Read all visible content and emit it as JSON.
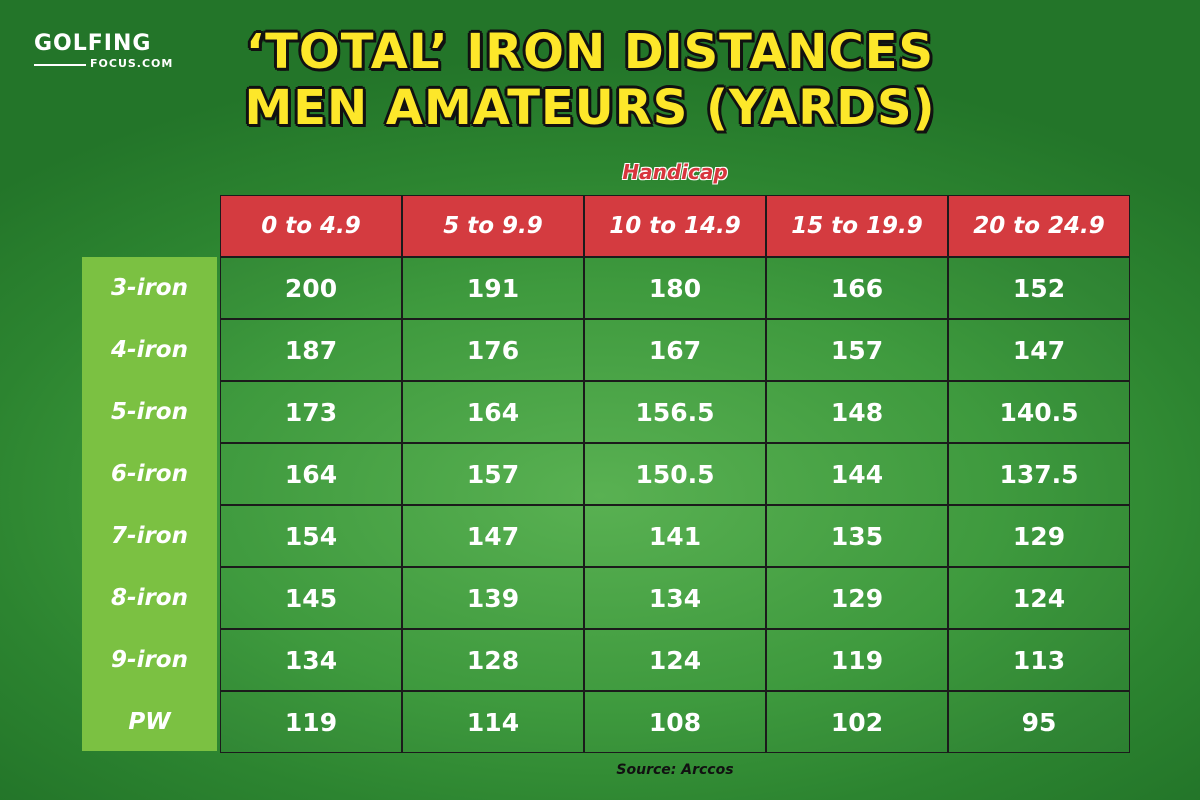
{
  "logo": {
    "top": "GOLFING",
    "bottom": "FOCUS.COM"
  },
  "chart_data": {
    "type": "table",
    "title": [
      "‘TOTAL’ IRON DISTANCES",
      "MEN AMATEURS (YARDS)"
    ],
    "column_group_label": "Handicap",
    "columns": [
      "0 to 4.9",
      "5 to 9.9",
      "10 to 14.9",
      "15 to 19.9",
      "20 to 24.9"
    ],
    "rows": [
      {
        "label": "3-iron",
        "values": [
          "200",
          "191",
          "180",
          "166",
          "152"
        ]
      },
      {
        "label": "4-iron",
        "values": [
          "187",
          "176",
          "167",
          "157",
          "147"
        ]
      },
      {
        "label": "5-iron",
        "values": [
          "173",
          "164",
          "156.5",
          "148",
          "140.5"
        ]
      },
      {
        "label": "6-iron",
        "values": [
          "164",
          "157",
          "150.5",
          "144",
          "137.5"
        ]
      },
      {
        "label": "7-iron",
        "values": [
          "154",
          "147",
          "141",
          "135",
          "129"
        ]
      },
      {
        "label": "8-iron",
        "values": [
          "145",
          "139",
          "134",
          "129",
          "124"
        ]
      },
      {
        "label": "9-iron",
        "values": [
          "134",
          "128",
          "124",
          "119",
          "113"
        ]
      },
      {
        "label": "PW",
        "values": [
          "119",
          "114",
          "108",
          "102",
          "95"
        ]
      }
    ],
    "source": "Source: Arccos"
  },
  "colors": {
    "background": "#3d9a3c",
    "title": "#fde72a",
    "header": "#d43b40",
    "row_label_column": "#7bc142",
    "handicap_label": "#d8363d"
  }
}
